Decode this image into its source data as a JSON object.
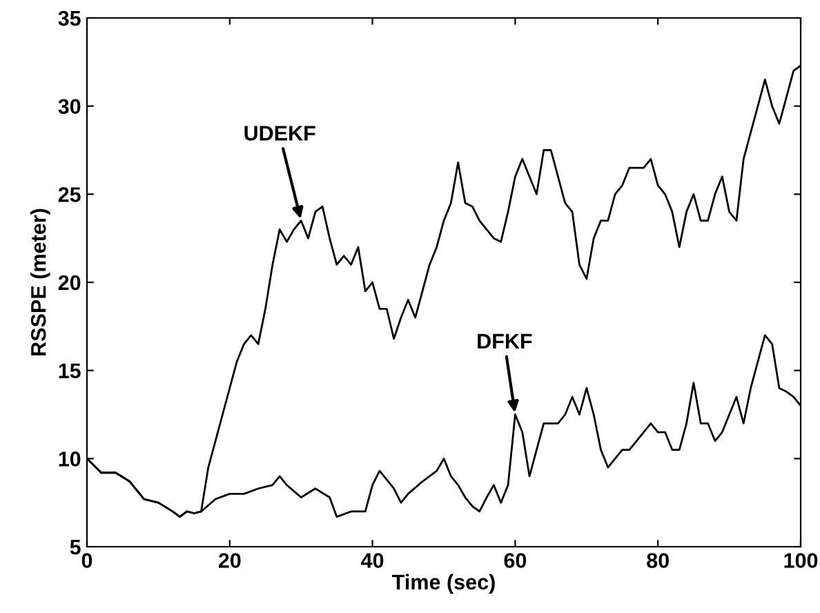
{
  "chart_data": {
    "type": "line",
    "xlabel": "Time (sec)",
    "ylabel": "RSSPE (meter)",
    "xlim": [
      0,
      100
    ],
    "ylim": [
      5,
      35
    ],
    "xticks": [
      0,
      20,
      40,
      60,
      80,
      100
    ],
    "yticks": [
      5,
      10,
      15,
      20,
      25,
      30,
      35
    ],
    "grid": false,
    "legend": false,
    "marker": "none",
    "line_style": "solid",
    "annotations": [
      {
        "text": "UDEKF",
        "x": 30,
        "y": 23.5
      },
      {
        "text": "DFKF",
        "x": 60,
        "y": 12.5
      }
    ],
    "series": [
      {
        "color": "#000000",
        "x": [
          0,
          2,
          4,
          6,
          8,
          10,
          12,
          13,
          14,
          15,
          16,
          17,
          18,
          19,
          20,
          21,
          22,
          23,
          24,
          25,
          26,
          27,
          28,
          29,
          30,
          31,
          32,
          33,
          34,
          35,
          36,
          37,
          38,
          39,
          40,
          41,
          42,
          43,
          44,
          45,
          46,
          47,
          48,
          49,
          50,
          51,
          52,
          53,
          54,
          55,
          56,
          57,
          58,
          59,
          60,
          61,
          62,
          63,
          64,
          65,
          66,
          67,
          68,
          69,
          70,
          71,
          72,
          73,
          74,
          75,
          76,
          77,
          78,
          79,
          80,
          81,
          82,
          83,
          84,
          85,
          86,
          87,
          88,
          89,
          90,
          91,
          92,
          93,
          94,
          95,
          96,
          97,
          98,
          99,
          100
        ],
        "values": [
          10,
          9.2,
          9.2,
          8.7,
          7.7,
          7.5,
          7.0,
          6.7,
          7.0,
          6.9,
          7.0,
          9.5,
          11,
          12.5,
          14,
          15.5,
          16.5,
          17,
          16.5,
          18.5,
          21,
          23,
          22.3,
          23,
          23.5,
          22.5,
          24,
          24.3,
          22.5,
          21,
          21.5,
          21,
          22,
          19.5,
          20,
          18.5,
          18.5,
          16.8,
          18,
          19,
          18,
          19.5,
          21,
          22,
          23.5,
          24.5,
          26.8,
          24.5,
          24.3,
          23.5,
          23,
          22.5,
          22.3,
          24,
          26,
          27,
          26,
          25,
          27.5,
          27.5,
          26,
          24.5,
          24,
          21,
          20.2,
          22.5,
          23.5,
          23.5,
          25,
          25.5,
          26.5,
          26.5,
          26.5,
          27,
          25.5,
          25,
          24,
          22,
          24,
          25,
          23.5,
          23.5,
          25,
          26,
          24,
          23.5,
          27,
          28.5,
          30,
          31.5,
          30,
          29,
          30.5,
          32,
          32.3
        ]
      },
      {
        "color": "#000000",
        "x": [
          0,
          2,
          4,
          6,
          8,
          10,
          12,
          13,
          14,
          15,
          16,
          18,
          20,
          22,
          24,
          26,
          27,
          28,
          30,
          32,
          34,
          35,
          37,
          39,
          40,
          41,
          43,
          44,
          45,
          47,
          49,
          50,
          51,
          52,
          53,
          54,
          55,
          56,
          57,
          58,
          59,
          60,
          61,
          62,
          63,
          64,
          65,
          66,
          67,
          68,
          69,
          70,
          71,
          72,
          73,
          74,
          75,
          76,
          77,
          78,
          79,
          80,
          81,
          82,
          83,
          84,
          85,
          86,
          87,
          88,
          89,
          90,
          91,
          92,
          93,
          94,
          95,
          96,
          97,
          98,
          99,
          100
        ],
        "values": [
          10,
          9.2,
          9.2,
          8.7,
          7.7,
          7.5,
          7.0,
          6.7,
          7.0,
          6.9,
          7.0,
          7.7,
          8,
          8,
          8.3,
          8.5,
          9,
          8.5,
          7.8,
          8.3,
          7.8,
          6.7,
          7,
          7,
          8.5,
          9.3,
          8.3,
          7.5,
          8,
          8.7,
          9.3,
          10,
          9,
          8.5,
          7.8,
          7.3,
          7,
          7.8,
          8.5,
          7.5,
          8.5,
          12.5,
          11.5,
          9,
          10.5,
          12,
          12,
          12,
          12.5,
          13.5,
          12.5,
          14,
          12.5,
          10.5,
          9.5,
          10,
          10.5,
          10.5,
          11,
          11.5,
          12,
          11.5,
          11.5,
          10.5,
          10.5,
          12,
          14.3,
          12,
          12,
          11,
          11.5,
          12.5,
          13.5,
          12,
          14,
          15.5,
          17,
          16.5,
          14,
          13.8,
          13.5,
          13
        ]
      }
    ]
  }
}
